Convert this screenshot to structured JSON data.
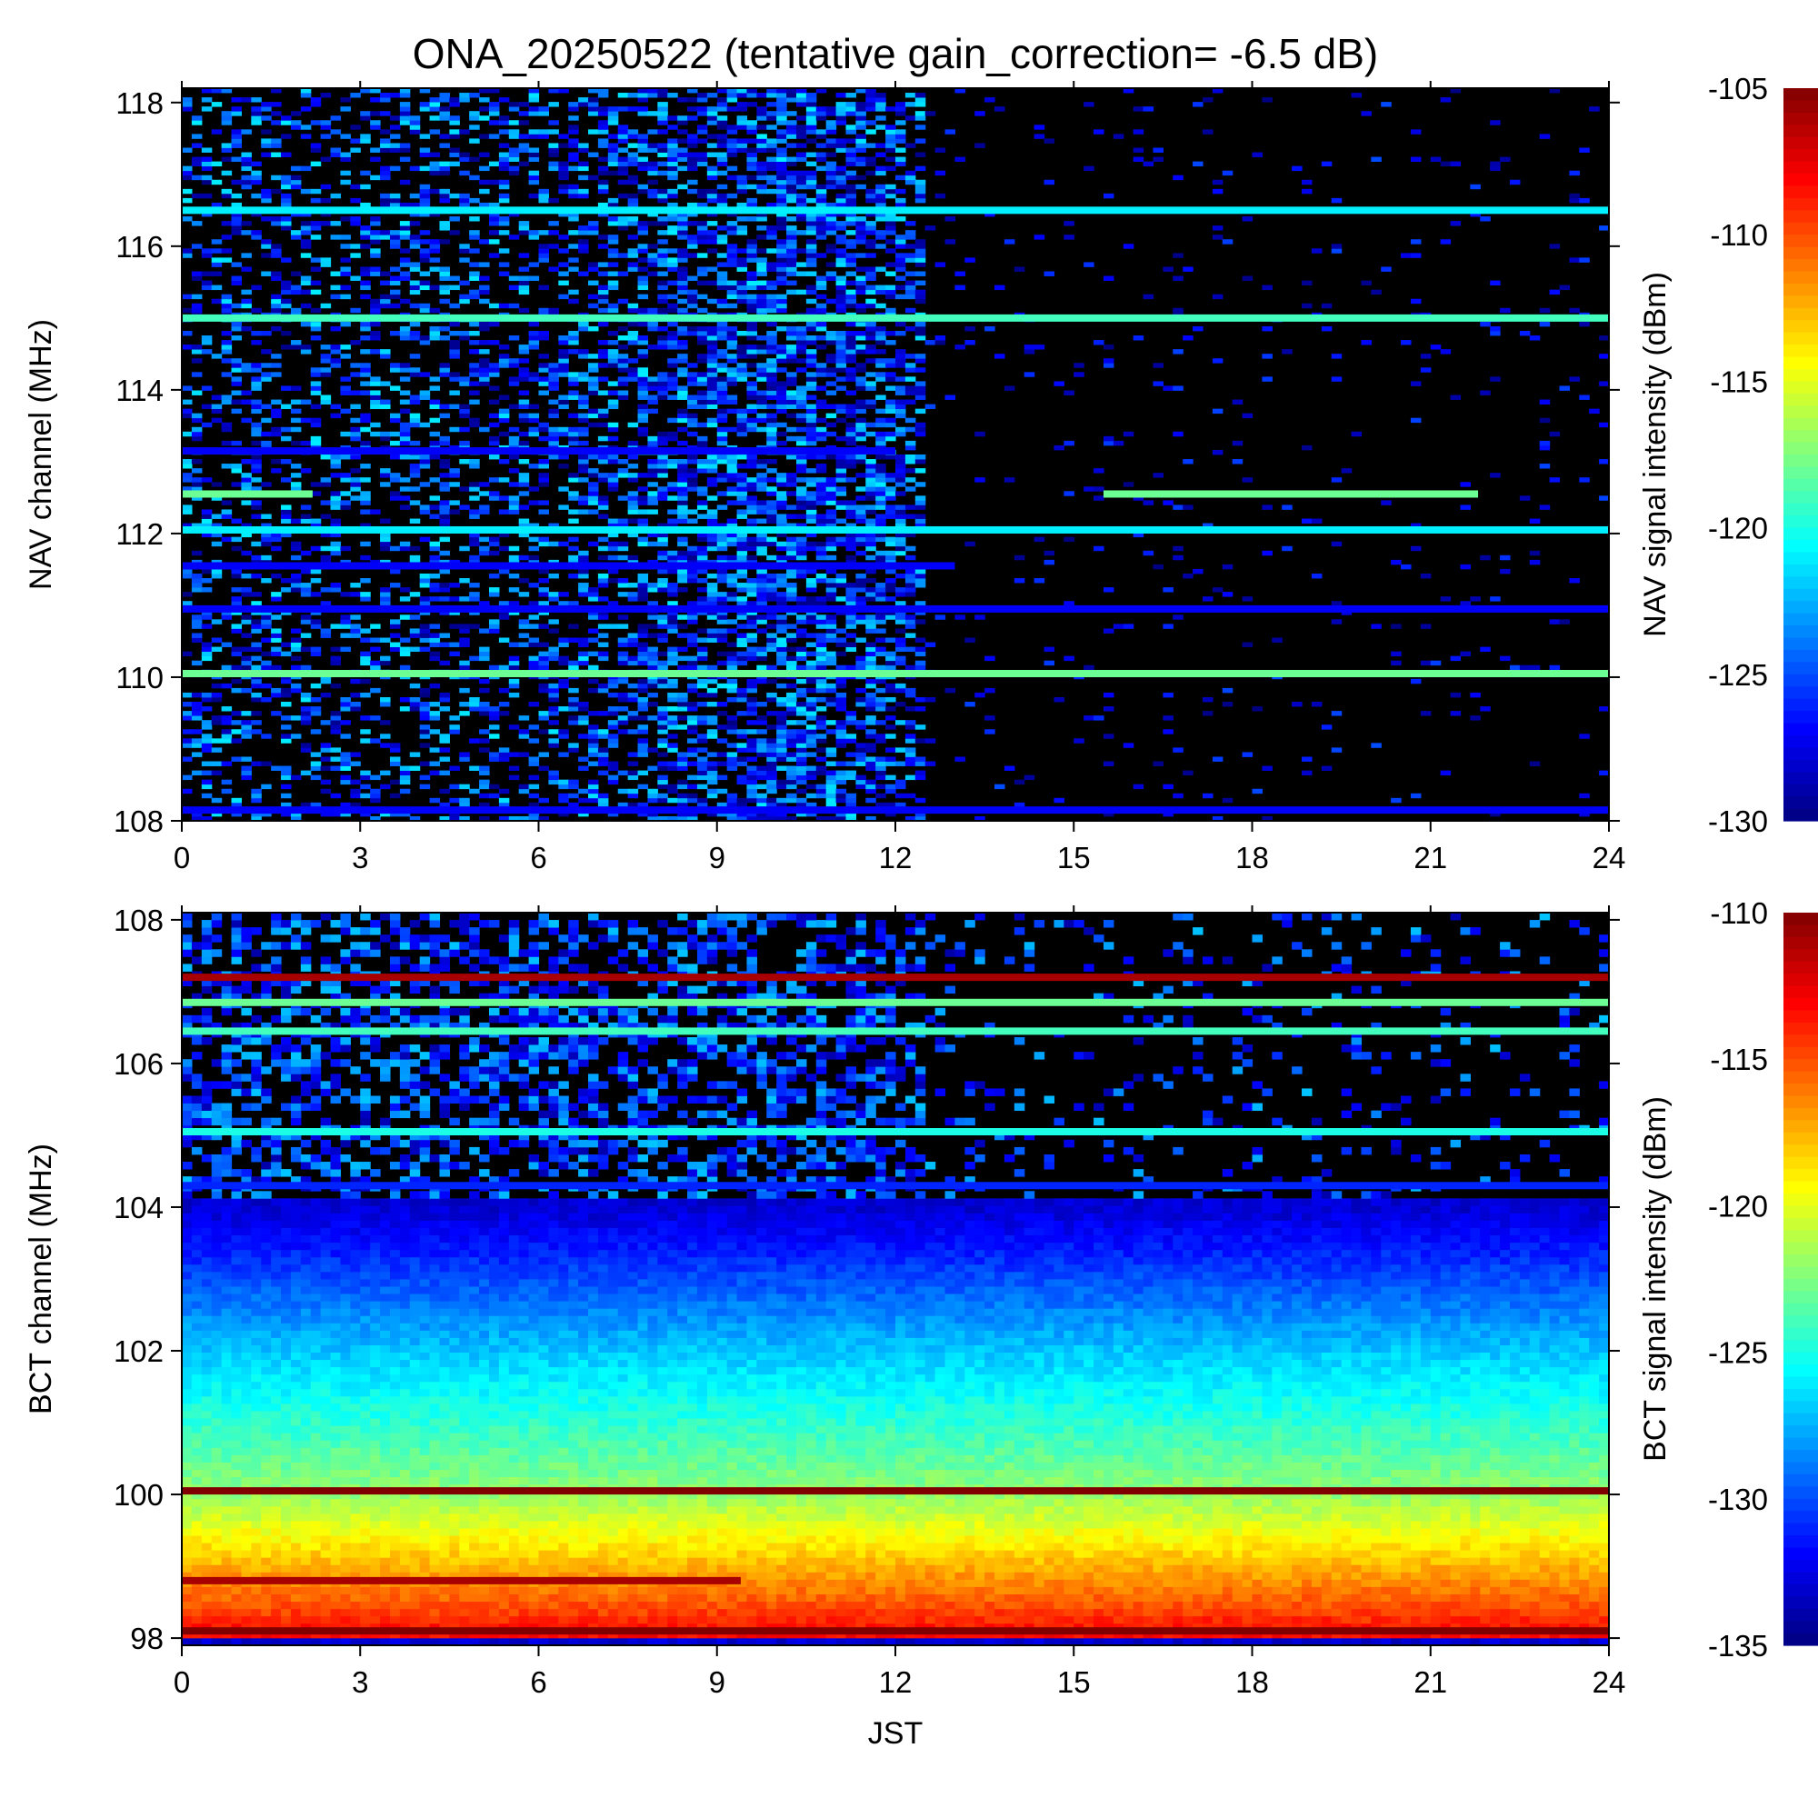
{
  "figure": {
    "title": "ONA_20250522 (tentative gain_correction= -6.5 dB)",
    "xlabel": "JST"
  },
  "chart_data": [
    {
      "type": "heatmap",
      "panel": "top",
      "ylabel": "NAV channel (MHz)",
      "colorbar_label": "NAV signal intensity (dBm)",
      "xlim": [
        0,
        24
      ],
      "ylim": [
        108,
        118.2
      ],
      "xticks": [
        0,
        3,
        6,
        9,
        12,
        15,
        18,
        21,
        24
      ],
      "yticks": [
        108,
        110,
        112,
        114,
        116,
        118
      ],
      "clim": [
        -130,
        -105
      ],
      "cticks": [
        -105,
        -110,
        -115,
        -120,
        -125,
        -130
      ],
      "colormap": "jet",
      "nodata_color": "#000000",
      "x_time_columns": 144,
      "channel_rows": 160,
      "noisy_period_jst": [
        0,
        12.5
      ],
      "strong_channels_mhz": [
        {
          "mhz": 116.5,
          "dbm": -121,
          "from": 0,
          "to": 24
        },
        {
          "mhz": 115.0,
          "dbm": -119,
          "from": 0,
          "to": 24
        },
        {
          "mhz": 112.55,
          "dbm": -118,
          "from": 0,
          "to": 2.2
        },
        {
          "mhz": 112.55,
          "dbm": -118,
          "from": 15.5,
          "to": 21.8
        },
        {
          "mhz": 112.05,
          "dbm": -121,
          "from": 0,
          "to": 24
        },
        {
          "mhz": 110.05,
          "dbm": -118,
          "from": 0,
          "to": 24
        },
        {
          "mhz": 113.15,
          "dbm": -127,
          "from": 0,
          "to": 12
        },
        {
          "mhz": 111.55,
          "dbm": -127,
          "from": 0,
          "to": 13
        },
        {
          "mhz": 110.95,
          "dbm": -127,
          "from": 0,
          "to": 24
        },
        {
          "mhz": 108.15,
          "dbm": -127,
          "from": 0,
          "to": 24
        }
      ]
    },
    {
      "type": "heatmap",
      "panel": "bottom",
      "ylabel": "BCT channel (MHz)",
      "colorbar_label": "BCT signal intensity (dBm)",
      "xlim": [
        0,
        24
      ],
      "ylim": [
        97.9,
        108.1
      ],
      "xticks": [
        0,
        3,
        6,
        9,
        12,
        15,
        18,
        21,
        24
      ],
      "yticks": [
        98,
        100,
        102,
        104,
        106,
        108
      ],
      "clim": [
        -135,
        -110
      ],
      "cticks": [
        -110,
        -115,
        -120,
        -125,
        -130,
        -135
      ],
      "colormap": "jet",
      "nodata_color": "#000000",
      "x_time_columns": 144,
      "channel_rows": 100,
      "background_gradient_dbm": [
        {
          "mhz": 98,
          "dbm": -113
        },
        {
          "mhz": 100,
          "dbm": -122
        },
        {
          "mhz": 102,
          "dbm": -127
        },
        {
          "mhz": 104,
          "dbm": -133
        }
      ],
      "strong_channels_mhz": [
        {
          "mhz": 107.2,
          "dbm": -111,
          "from": 0,
          "to": 24
        },
        {
          "mhz": 106.85,
          "dbm": -123,
          "from": 0,
          "to": 24
        },
        {
          "mhz": 106.45,
          "dbm": -124,
          "from": 0,
          "to": 24
        },
        {
          "mhz": 105.05,
          "dbm": -125,
          "from": 0,
          "to": 24
        },
        {
          "mhz": 104.3,
          "dbm": -131,
          "from": 0,
          "to": 24
        },
        {
          "mhz": 100.05,
          "dbm": -110,
          "from": 0,
          "to": 24
        },
        {
          "mhz": 98.8,
          "dbm": -111,
          "from": 0,
          "to": 9.4
        },
        {
          "mhz": 98.1,
          "dbm": -110,
          "from": 0,
          "to": 24
        }
      ]
    }
  ]
}
